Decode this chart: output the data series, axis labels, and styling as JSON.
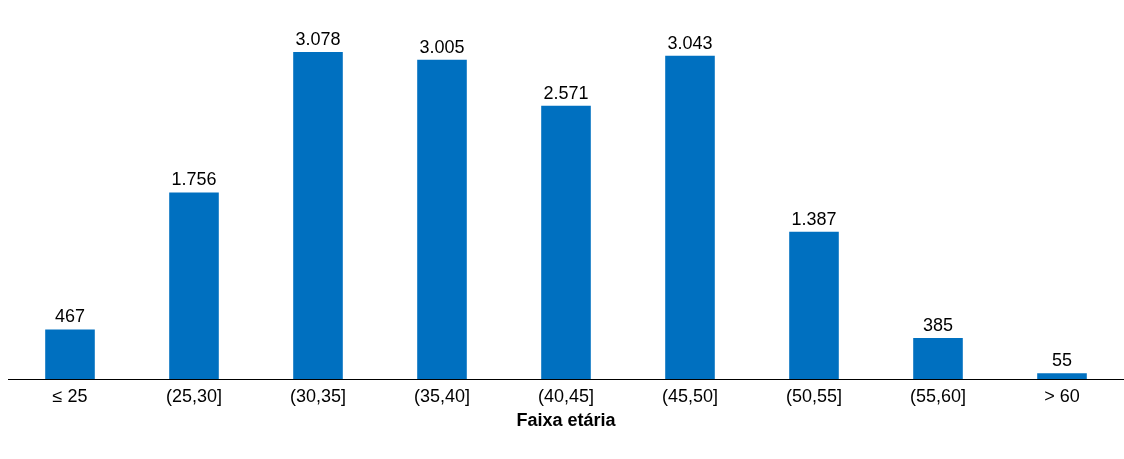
{
  "chart_data": {
    "type": "bar",
    "xlabel": "Faixa etária",
    "categories": [
      "≤ 25",
      "(25,30]",
      "(30,35]",
      "(35,40]",
      "(40,45]",
      "(45,50]",
      "(50,55]",
      "(55,60]",
      "> 60"
    ],
    "values": [
      467,
      1756,
      3078,
      3005,
      2571,
      3043,
      1387,
      385,
      55
    ],
    "value_labels": [
      "467",
      "1.756",
      "3.078",
      "3.005",
      "2.571",
      "3.043",
      "1.387",
      "385",
      "55"
    ],
    "color": "#0070c0"
  }
}
